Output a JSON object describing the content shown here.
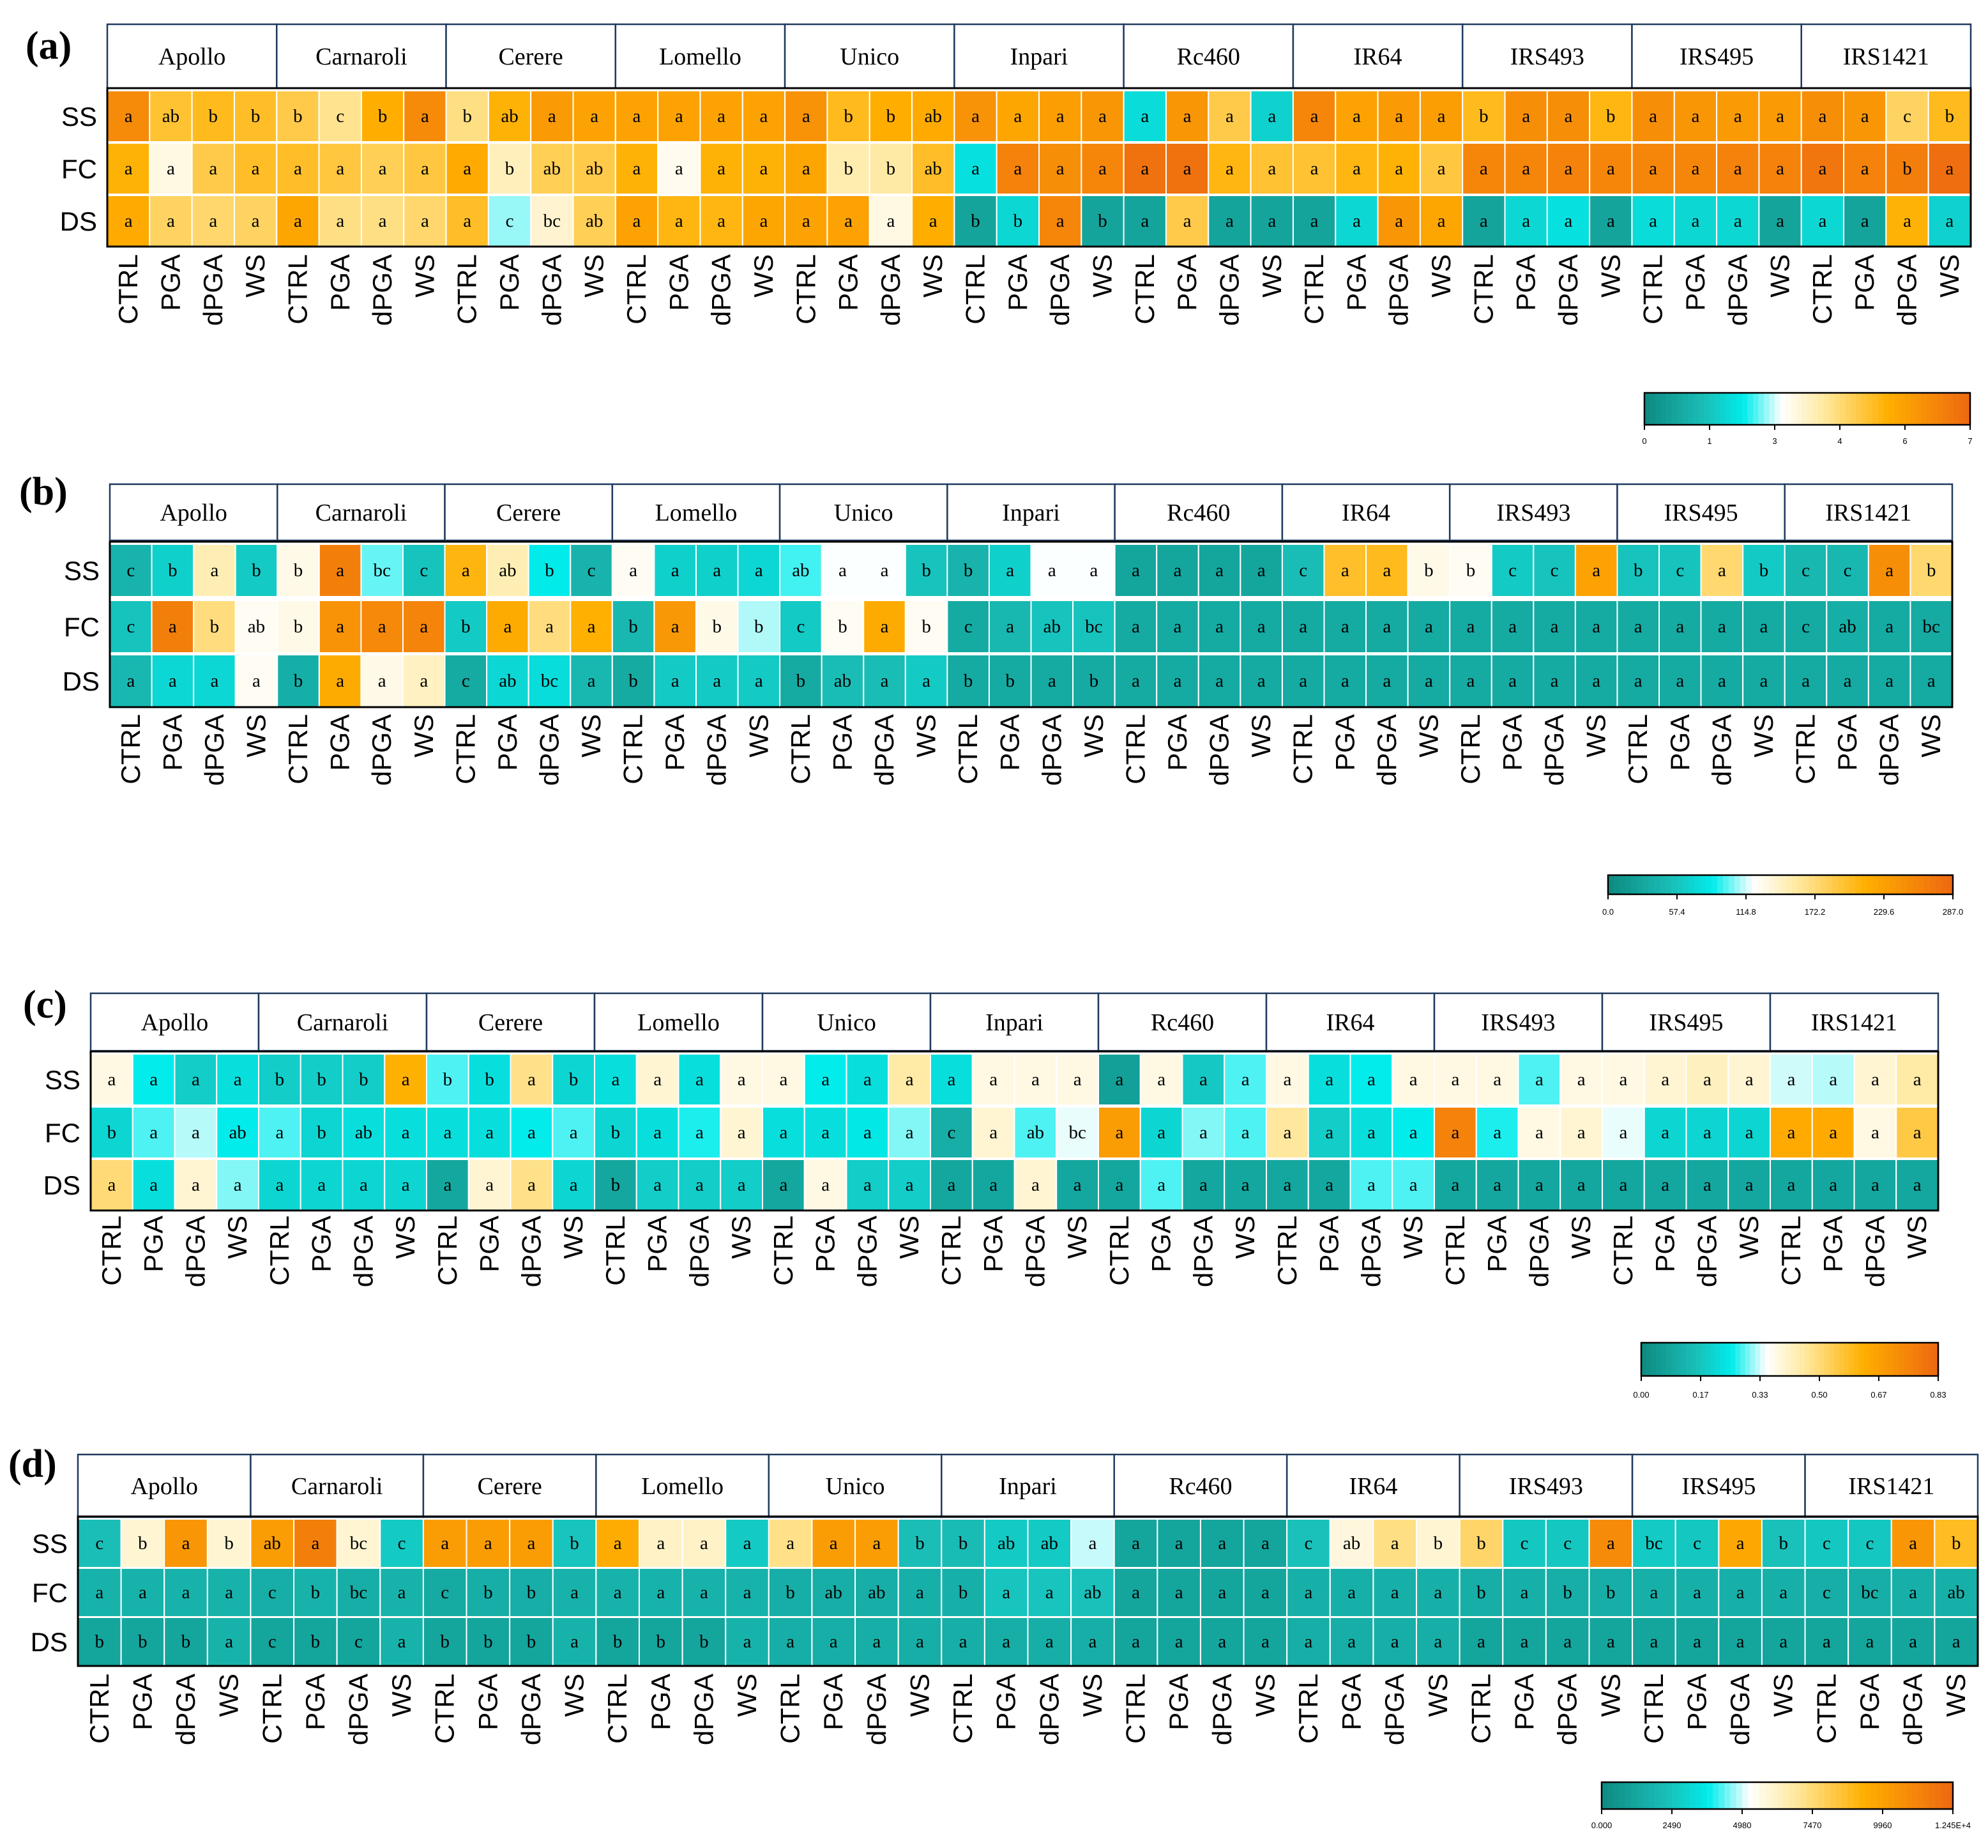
{
  "chart_data": [
    {
      "type": "heatmap",
      "panel": "(a)",
      "genotypes": [
        "Apollo",
        "Carnaroli",
        "Cerere",
        "Lomello",
        "Unico",
        "Inpari",
        "Rc460",
        "IR64",
        "IRS493",
        "IRS495",
        "IRS1421"
      ],
      "treatments": [
        "CTRL",
        "PGA",
        "dPGA",
        "WS"
      ],
      "rows": [
        "SS",
        "FC",
        "DS"
      ],
      "scale": {
        "ticks": [
          "0",
          "1",
          "3",
          "4",
          "6",
          "7"
        ],
        "min": 0,
        "max": 7
      },
      "values": [
        [
          6.2,
          4.8,
          5.0,
          4.9,
          4.6,
          4.0,
          5.3,
          6.2,
          4.1,
          5.2,
          5.8,
          5.6,
          5.6,
          5.6,
          5.6,
          5.6,
          6.0,
          5.0,
          5.3,
          5.4,
          6.0,
          5.5,
          5.7,
          5.9,
          1.8,
          5.9,
          4.6,
          1.6,
          6.3,
          5.6,
          5.8,
          5.7,
          5.0,
          6.1,
          6.1,
          5.1,
          6.1,
          5.9,
          5.8,
          5.8,
          6.1,
          5.9,
          4.4,
          5.0
        ],
        [
          5.2,
          3.2,
          4.6,
          4.9,
          4.9,
          4.7,
          4.5,
          4.7,
          5.4,
          3.6,
          4.5,
          4.6,
          5.2,
          3.1,
          5.2,
          5.2,
          5.5,
          3.7,
          3.8,
          4.9,
          1.9,
          6.4,
          6.1,
          6.3,
          6.8,
          6.8,
          5.1,
          4.8,
          4.8,
          5.1,
          5.2,
          4.7,
          6.3,
          6.3,
          6.4,
          6.3,
          6.3,
          6.3,
          6.4,
          6.4,
          6.7,
          6.4,
          6.5,
          6.9
        ],
        [
          5.4,
          4.4,
          4.3,
          4.4,
          5.5,
          4.1,
          4.1,
          4.3,
          4.9,
          2.6,
          3.4,
          4.5,
          5.6,
          5.1,
          5.1,
          5.5,
          5.6,
          5.6,
          3.2,
          5.3,
          0.6,
          1.7,
          6.3,
          0.6,
          0.6,
          4.6,
          0.6,
          0.6,
          0.6,
          1.7,
          5.9,
          5.5,
          0.6,
          1.7,
          1.9,
          0.6,
          1.8,
          1.7,
          1.7,
          0.6,
          1.7,
          0.6,
          5.2,
          1.6
        ]
      ],
      "letters": [
        [
          "a",
          "ab",
          "b",
          "b",
          "b",
          "c",
          "b",
          "a",
          "b",
          "ab",
          "a",
          "a",
          "a",
          "a",
          "a",
          "a",
          "a",
          "b",
          "b",
          "ab",
          "a",
          "a",
          "a",
          "a",
          "a",
          "a",
          "a",
          "a",
          "a",
          "a",
          "a",
          "a",
          "b",
          "a",
          "a",
          "b",
          "a",
          "a",
          "a",
          "a",
          "a",
          "a",
          "c",
          "b"
        ],
        [
          "a",
          "a",
          "a",
          "a",
          "a",
          "a",
          "a",
          "a",
          "a",
          "b",
          "ab",
          "ab",
          "a",
          "a",
          "a",
          "a",
          "a",
          "b",
          "b",
          "ab",
          "a",
          "a",
          "a",
          "a",
          "a",
          "a",
          "a",
          "a",
          "a",
          "a",
          "a",
          "a",
          "a",
          "a",
          "a",
          "a",
          "a",
          "a",
          "a",
          "a",
          "a",
          "a",
          "b",
          "a"
        ],
        [
          "a",
          "a",
          "a",
          "a",
          "a",
          "a",
          "a",
          "a",
          "a",
          "c",
          "bc",
          "ab",
          "a",
          "a",
          "a",
          "a",
          "a",
          "a",
          "a",
          "a",
          "b",
          "b",
          "a",
          "b",
          "a",
          "a",
          "a",
          "a",
          "a",
          "a",
          "a",
          "a",
          "a",
          "a",
          "a",
          "a",
          "a",
          "a",
          "a",
          "a",
          "a",
          "a",
          "a",
          "a"
        ]
      ]
    },
    {
      "type": "heatmap",
      "panel": "(b)",
      "genotypes": [
        "Apollo",
        "Carnaroli",
        "Cerere",
        "Lomello",
        "Unico",
        "Inpari",
        "Rc460",
        "IR64",
        "IRS493",
        "IRS495",
        "IRS1421"
      ],
      "treatments": [
        "CTRL",
        "PGA",
        "dPGA",
        "WS"
      ],
      "rows": [
        "SS",
        "FC",
        "DS"
      ],
      "scale": {
        "ticks": [
          "0.0",
          "57.4",
          "114.8",
          "172.2",
          "229.6",
          "287.0"
        ],
        "min": 0,
        "max": 287
      },
      "values": [
        [
          40,
          65,
          150,
          60,
          130,
          265,
          100,
          55,
          210,
          150,
          85,
          40,
          125,
          65,
          65,
          70,
          95,
          120,
          120,
          55,
          40,
          65,
          120,
          120,
          25,
          25,
          25,
          25,
          50,
          200,
          205,
          130,
          125,
          60,
          55,
          230,
          55,
          55,
          175,
          60,
          45,
          45,
          250,
          175
        ],
        [
          55,
          265,
          170,
          125,
          130,
          245,
          255,
          260,
          60,
          220,
          170,
          215,
          45,
          240,
          130,
          110,
          60,
          125,
          220,
          125,
          30,
          45,
          55,
          55,
          30,
          30,
          30,
          30,
          30,
          30,
          30,
          30,
          30,
          30,
          30,
          30,
          30,
          30,
          30,
          30,
          30,
          35,
          30,
          30
        ],
        [
          45,
          70,
          70,
          125,
          35,
          220,
          130,
          145,
          30,
          70,
          75,
          45,
          30,
          60,
          60,
          60,
          30,
          50,
          50,
          60,
          30,
          30,
          30,
          30,
          30,
          30,
          30,
          30,
          30,
          30,
          30,
          30,
          30,
          30,
          30,
          30,
          30,
          30,
          30,
          30,
          30,
          30,
          30,
          30
        ]
      ],
      "letters": [
        [
          "c",
          "b",
          "a",
          "b",
          "b",
          "a",
          "bc",
          "c",
          "a",
          "ab",
          "b",
          "c",
          "a",
          "a",
          "a",
          "a",
          "ab",
          "a",
          "a",
          "b",
          "b",
          "a",
          "a",
          "a",
          "a",
          "a",
          "a",
          "a",
          "c",
          "a",
          "a",
          "b",
          "b",
          "c",
          "c",
          "a",
          "b",
          "c",
          "a",
          "b",
          "c",
          "c",
          "a",
          "b"
        ],
        [
          "c",
          "a",
          "b",
          "ab",
          "b",
          "a",
          "a",
          "a",
          "b",
          "a",
          "a",
          "a",
          "b",
          "a",
          "b",
          "b",
          "c",
          "b",
          "a",
          "b",
          "c",
          "a",
          "ab",
          "bc",
          "a",
          "a",
          "a",
          "a",
          "a",
          "a",
          "a",
          "a",
          "a",
          "a",
          "a",
          "a",
          "a",
          "a",
          "a",
          "a",
          "c",
          "ab",
          "a",
          "bc"
        ],
        [
          "a",
          "a",
          "a",
          "a",
          "b",
          "a",
          "a",
          "a",
          "c",
          "ab",
          "bc",
          "a",
          "b",
          "a",
          "a",
          "a",
          "b",
          "ab",
          "a",
          "a",
          "b",
          "b",
          "a",
          "b",
          "a",
          "a",
          "a",
          "a",
          "a",
          "a",
          "a",
          "a",
          "a",
          "a",
          "a",
          "a",
          "a",
          "a",
          "a",
          "a",
          "a",
          "a",
          "a",
          "a"
        ]
      ]
    },
    {
      "type": "heatmap",
      "panel": "(c)",
      "genotypes": [
        "Apollo",
        "Carnaroli",
        "Cerere",
        "Lomello",
        "Unico",
        "Inpari",
        "Rc460",
        "IR64",
        "IRS493",
        "IRS495",
        "IRS1421"
      ],
      "treatments": [
        "CTRL",
        "PGA",
        "dPGA",
        "WS"
      ],
      "rows": [
        "SS",
        "FC",
        "DS"
      ],
      "scale": {
        "ticks": [
          "0.00",
          "0.17",
          "0.33",
          "0.50",
          "0.67",
          "0.83"
        ],
        "min": 0,
        "max": 0.83
      },
      "values": [
        [
          0.38,
          0.25,
          0.18,
          0.22,
          0.18,
          0.18,
          0.18,
          0.62,
          0.28,
          0.22,
          0.48,
          0.2,
          0.22,
          0.4,
          0.22,
          0.38,
          0.38,
          0.25,
          0.22,
          0.45,
          0.22,
          0.38,
          0.38,
          0.38,
          0.06,
          0.38,
          0.17,
          0.28,
          0.38,
          0.22,
          0.25,
          0.38,
          0.38,
          0.38,
          0.28,
          0.38,
          0.38,
          0.4,
          0.42,
          0.4,
          0.33,
          0.32,
          0.4,
          0.45
        ],
        [
          0.2,
          0.28,
          0.32,
          0.25,
          0.28,
          0.2,
          0.22,
          0.22,
          0.22,
          0.22,
          0.25,
          0.28,
          0.2,
          0.22,
          0.26,
          0.4,
          0.22,
          0.22,
          0.24,
          0.3,
          0.1,
          0.4,
          0.28,
          0.34,
          0.68,
          0.2,
          0.3,
          0.28,
          0.46,
          0.18,
          0.22,
          0.25,
          0.76,
          0.26,
          0.38,
          0.4,
          0.34,
          0.2,
          0.2,
          0.2,
          0.64,
          0.64,
          0.38,
          0.55
        ],
        [
          0.5,
          0.22,
          0.4,
          0.3,
          0.2,
          0.2,
          0.2,
          0.2,
          0.08,
          0.4,
          0.48,
          0.2,
          0.08,
          0.18,
          0.18,
          0.18,
          0.08,
          0.38,
          0.18,
          0.18,
          0.08,
          0.08,
          0.4,
          0.08,
          0.08,
          0.28,
          0.08,
          0.08,
          0.08,
          0.08,
          0.28,
          0.28,
          0.08,
          0.08,
          0.08,
          0.08,
          0.08,
          0.08,
          0.08,
          0.08,
          0.08,
          0.08,
          0.08,
          0.08
        ]
      ],
      "letters": [
        [
          "a",
          "a",
          "a",
          "a",
          "b",
          "b",
          "b",
          "a",
          "b",
          "b",
          "a",
          "b",
          "a",
          "a",
          "a",
          "a",
          "a",
          "a",
          "a",
          "a",
          "a",
          "a",
          "a",
          "a",
          "a",
          "a",
          "a",
          "a",
          "a",
          "a",
          "a",
          "a",
          "a",
          "a",
          "a",
          "a",
          "a",
          "a",
          "a",
          "a",
          "a",
          "a",
          "a",
          "a"
        ],
        [
          "b",
          "a",
          "a",
          "ab",
          "a",
          "b",
          "ab",
          "a",
          "a",
          "a",
          "a",
          "a",
          "b",
          "a",
          "a",
          "a",
          "a",
          "a",
          "a",
          "a",
          "c",
          "a",
          "ab",
          "bc",
          "a",
          "a",
          "a",
          "a",
          "a",
          "a",
          "a",
          "a",
          "a",
          "a",
          "a",
          "a",
          "a",
          "a",
          "a",
          "a",
          "a",
          "a",
          "a",
          "a"
        ],
        [
          "a",
          "a",
          "a",
          "a",
          "a",
          "a",
          "a",
          "a",
          "a",
          "a",
          "a",
          "a",
          "b",
          "a",
          "a",
          "a",
          "a",
          "a",
          "a",
          "a",
          "a",
          "a",
          "a",
          "a",
          "a",
          "a",
          "a",
          "a",
          "a",
          "a",
          "a",
          "a",
          "a",
          "a",
          "a",
          "a",
          "a",
          "a",
          "a",
          "a",
          "a",
          "a",
          "a",
          "a"
        ]
      ]
    },
    {
      "type": "heatmap",
      "panel": "(d)",
      "genotypes": [
        "Apollo",
        "Carnaroli",
        "Cerere",
        "Lomello",
        "Unico",
        "Inpari",
        "Rc460",
        "IR64",
        "IRS493",
        "IRS495",
        "IRS1421"
      ],
      "treatments": [
        "CTRL",
        "PGA",
        "dPGA",
        "WS"
      ],
      "rows": [
        "SS",
        "FC",
        "DS"
      ],
      "scale": {
        "ticks": [
          "0.000",
          "2490",
          "4980",
          "7470",
          "9960",
          "1.245E+4"
        ],
        "min": 0,
        "max": 12450
      },
      "values": [
        [
          2200,
          6000,
          10500,
          6000,
          10200,
          11500,
          6000,
          2600,
          10200,
          10200,
          10200,
          2400,
          9500,
          6200,
          6200,
          2600,
          7200,
          10200,
          10200,
          2200,
          2100,
          2600,
          2600,
          4900,
          1100,
          1100,
          1100,
          1100,
          2300,
          5800,
          7300,
          6000,
          7700,
          2500,
          2500,
          11000,
          2600,
          2500,
          9700,
          2300,
          2500,
          2500,
          10500,
          8800
        ],
        [
          1700,
          1700,
          1700,
          1700,
          1500,
          1700,
          1500,
          1700,
          1300,
          1500,
          1500,
          1700,
          1700,
          1700,
          1700,
          1700,
          1500,
          1500,
          1500,
          1600,
          1600,
          2400,
          2400,
          2300,
          1100,
          1100,
          1100,
          1100,
          1600,
          1600,
          1600,
          1600,
          1500,
          1600,
          1500,
          1500,
          1600,
          1600,
          1600,
          1600,
          1500,
          1500,
          1600,
          1600
        ],
        [
          1100,
          1100,
          1100,
          1700,
          1100,
          1100,
          1100,
          1700,
          1100,
          1100,
          1100,
          1700,
          1100,
          1100,
          1100,
          1700,
          1500,
          1500,
          1500,
          1500,
          1500,
          1500,
          1500,
          1500,
          1100,
          1100,
          1100,
          1100,
          1500,
          1500,
          1500,
          1500,
          1100,
          1100,
          1100,
          1100,
          1100,
          1100,
          1100,
          1100,
          1100,
          1100,
          1100,
          1100
        ]
      ],
      "letters": [
        [
          "c",
          "b",
          "a",
          "b",
          "ab",
          "a",
          "bc",
          "c",
          "a",
          "a",
          "a",
          "b",
          "a",
          "a",
          "a",
          "a",
          "a",
          "a",
          "a",
          "b",
          "b",
          "ab",
          "ab",
          "a",
          "a",
          "a",
          "a",
          "a",
          "c",
          "ab",
          "a",
          "b",
          "b",
          "c",
          "c",
          "a",
          "bc",
          "c",
          "a",
          "b",
          "c",
          "c",
          "a",
          "b"
        ],
        [
          "a",
          "a",
          "a",
          "a",
          "c",
          "b",
          "bc",
          "a",
          "c",
          "b",
          "b",
          "a",
          "a",
          "a",
          "a",
          "a",
          "b",
          "ab",
          "ab",
          "a",
          "b",
          "a",
          "a",
          "ab",
          "a",
          "a",
          "a",
          "a",
          "a",
          "a",
          "a",
          "a",
          "b",
          "a",
          "b",
          "b",
          "a",
          "a",
          "a",
          "a",
          "c",
          "bc",
          "a",
          "ab"
        ],
        [
          "b",
          "b",
          "b",
          "a",
          "c",
          "b",
          "c",
          "a",
          "b",
          "b",
          "b",
          "a",
          "b",
          "b",
          "b",
          "a",
          "a",
          "a",
          "a",
          "a",
          "a",
          "a",
          "a",
          "a",
          "a",
          "a",
          "a",
          "a",
          "a",
          "a",
          "a",
          "a",
          "a",
          "a",
          "a",
          "a",
          "a",
          "a",
          "a",
          "a",
          "a",
          "a",
          "a",
          "a"
        ]
      ]
    }
  ],
  "colors": {
    "scale_stops": [
      "#0e8c83",
      "#1abfb8",
      "#00ecec",
      "#ffffff",
      "#ffe9a0",
      "#ffb000",
      "#ee6a10"
    ]
  }
}
